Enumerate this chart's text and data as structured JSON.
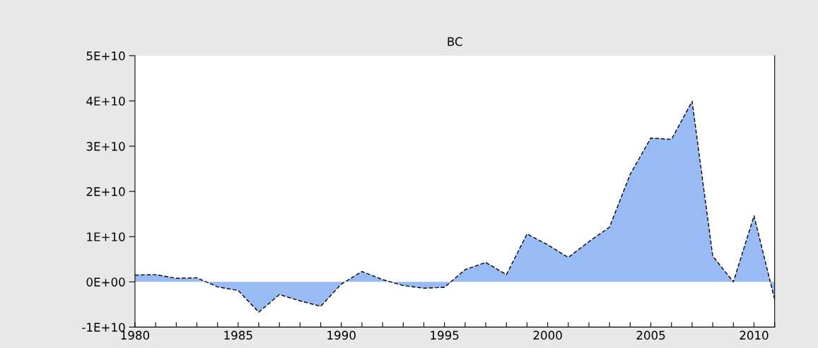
{
  "chart_data": {
    "type": "area",
    "title": "BC",
    "x": [
      1980,
      1981,
      1982,
      1983,
      1984,
      1985,
      1986,
      1987,
      1988,
      1989,
      1990,
      1991,
      1992,
      1993,
      1994,
      1995,
      1996,
      1997,
      1998,
      1999,
      2000,
      2001,
      2002,
      2003,
      2004,
      2005,
      2006,
      2007,
      2008,
      2009,
      2010,
      2011
    ],
    "series": [
      {
        "color": "#99bbf5",
        "values": [
          1500000000.0,
          1600000000.0,
          800000000.0,
          900000000.0,
          -1100000000.0,
          -1900000000.0,
          -6700000000.0,
          -2800000000.0,
          -4200000000.0,
          -5400000000.0,
          -500000000.0,
          2300000000.0,
          500000000.0,
          -800000000.0,
          -1400000000.0,
          -1200000000.0,
          2700000000.0,
          4300000000.0,
          1600000000.0,
          10600000000.0,
          8200000000.0,
          5400000000.0,
          8900000000.0,
          12100000000.0,
          23800000000.0,
          31800000000.0,
          31500000000.0,
          39900000000.0,
          5700000000.0,
          0,
          14600000000.0,
          -3900000000.0
        ]
      }
    ],
    "line_style": "dashed",
    "xlim": [
      1980,
      2011
    ],
    "xticks": [
      1980,
      {
        "value": 1981,
        "label": null
      },
      {
        "value": 1982,
        "label": null
      },
      {
        "value": 1983,
        "label": null
      },
      {
        "value": 1984,
        "label": null
      },
      1985,
      {
        "value": 1986,
        "label": null
      },
      {
        "value": 1987,
        "label": null
      },
      {
        "value": 1988,
        "label": null
      },
      {
        "value": 1989,
        "label": null
      },
      1990,
      {
        "value": 1991,
        "label": null
      },
      {
        "value": 1992,
        "label": null
      },
      {
        "value": 1993,
        "label": null
      },
      {
        "value": 1994,
        "label": null
      },
      1995,
      {
        "value": 1996,
        "label": null
      },
      {
        "value": 1997,
        "label": null
      },
      {
        "value": 1998,
        "label": null
      },
      {
        "value": 1999,
        "label": null
      },
      2000,
      {
        "value": 2001,
        "label": null
      },
      {
        "value": 2002,
        "label": null
      },
      {
        "value": 2003,
        "label": null
      },
      {
        "value": 2004,
        "label": null
      },
      2005,
      {
        "value": 2006,
        "label": null
      },
      {
        "value": 2007,
        "label": null
      },
      {
        "value": 2008,
        "label": null
      },
      {
        "value": 2009,
        "label": null
      },
      2010,
      {
        "value": 2011,
        "label": null
      }
    ],
    "ylim": [
      -10000000000.0,
      50000000000.0
    ],
    "yticks": [
      {
        "value": -10000000000.0,
        "label": "-1E+10"
      },
      {
        "value": 0,
        "label": "0E+00"
      },
      {
        "value": 10000000000.0,
        "label": "1E+10"
      },
      {
        "value": 20000000000.0,
        "label": "2E+10"
      },
      {
        "value": 30000000000.0,
        "label": "3E+10"
      },
      {
        "value": 40000000000.0,
        "label": "4E+10"
      },
      {
        "value": 50000000000.0,
        "label": "5E+10"
      }
    ],
    "grid": false,
    "legend": false
  }
}
